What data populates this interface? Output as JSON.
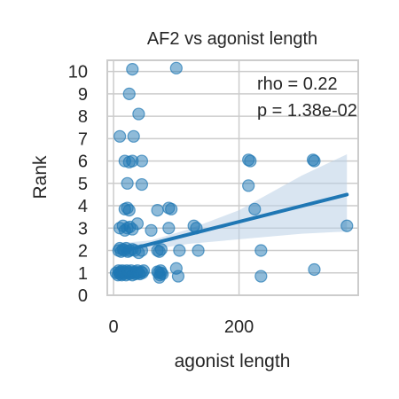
{
  "chart_data": {
    "type": "scatter",
    "title": "AF2 vs agonist length",
    "xlabel": "agonist length",
    "ylabel": "Rank",
    "xlim": [
      -10,
      390
    ],
    "ylim": [
      0,
      10.5
    ],
    "x_ticks": [
      0,
      200
    ],
    "y_ticks": [
      0,
      1,
      2,
      3,
      4,
      5,
      6,
      7,
      8,
      9,
      10
    ],
    "grid": true,
    "annotations": [
      "rho = 0.22",
      "p = 1.38e-02"
    ],
    "colors": {
      "points": "#1f77b4",
      "regression": "#1f77b4",
      "ci_band": "#b9cfe6",
      "grid": "#cccccc",
      "frame": "#cccccc"
    },
    "points": [
      [
        4,
        1.0
      ],
      [
        7,
        0.9
      ],
      [
        8,
        1.1
      ],
      [
        9,
        1.0
      ],
      [
        10,
        0.95
      ],
      [
        11,
        1.05
      ],
      [
        12,
        1.0
      ],
      [
        13,
        0.9
      ],
      [
        14,
        1.1
      ],
      [
        15,
        1.0
      ],
      [
        16,
        0.95
      ],
      [
        17,
        1.05
      ],
      [
        18,
        1.0
      ],
      [
        20,
        0.9
      ],
      [
        21,
        1.1
      ],
      [
        22,
        1.0
      ],
      [
        24,
        1.05
      ],
      [
        25,
        0.95
      ],
      [
        27,
        1.0
      ],
      [
        28,
        1.1
      ],
      [
        30,
        0.9
      ],
      [
        32,
        1.0
      ],
      [
        34,
        1.05
      ],
      [
        35,
        0.95
      ],
      [
        37,
        1.0
      ],
      [
        38,
        1.1
      ],
      [
        40,
        1.0
      ],
      [
        42,
        0.95
      ],
      [
        44,
        1.05
      ],
      [
        46,
        1.0
      ],
      [
        48,
        1.1
      ],
      [
        72,
        1.0
      ],
      [
        74,
        0.9
      ],
      [
        75,
        1.1
      ],
      [
        76,
        1.0
      ],
      [
        78,
        0.95
      ],
      [
        70,
        1.05
      ],
      [
        73,
        0.8
      ],
      [
        100,
        1.2
      ],
      [
        103,
        0.85
      ],
      [
        235,
        0.85
      ],
      [
        320,
        1.15
      ],
      [
        8,
        2.0
      ],
      [
        10,
        2.1
      ],
      [
        12,
        1.95
      ],
      [
        15,
        2.05
      ],
      [
        17,
        2.0
      ],
      [
        20,
        2.1
      ],
      [
        23,
        1.95
      ],
      [
        26,
        2.0
      ],
      [
        30,
        2.05
      ],
      [
        34,
        2.0
      ],
      [
        40,
        1.9
      ],
      [
        45,
        2.0
      ],
      [
        70,
        2.0
      ],
      [
        73,
        1.95
      ],
      [
        76,
        2.05
      ],
      [
        105,
        2.0
      ],
      [
        135,
        2.0
      ],
      [
        235,
        2.0
      ],
      [
        10,
        3.0
      ],
      [
        15,
        3.1
      ],
      [
        18,
        2.9
      ],
      [
        22,
        3.0
      ],
      [
        26,
        3.05
      ],
      [
        30,
        2.95
      ],
      [
        38,
        3.2
      ],
      [
        60,
        2.9
      ],
      [
        88,
        3.0
      ],
      [
        128,
        3.1
      ],
      [
        132,
        3.0
      ],
      [
        372,
        3.1
      ],
      [
        18,
        3.85
      ],
      [
        22,
        3.9
      ],
      [
        25,
        3.8
      ],
      [
        70,
        3.8
      ],
      [
        88,
        3.9
      ],
      [
        92,
        3.85
      ],
      [
        225,
        3.85
      ],
      [
        22,
        5.0
      ],
      [
        45,
        4.95
      ],
      [
        215,
        4.9
      ],
      [
        18,
        6.0
      ],
      [
        25,
        5.95
      ],
      [
        30,
        6.0
      ],
      [
        45,
        6.0
      ],
      [
        215,
        6.05
      ],
      [
        218,
        6.0
      ],
      [
        318,
        6.05
      ],
      [
        320,
        6.0
      ],
      [
        10,
        7.1
      ],
      [
        32,
        7.1
      ],
      [
        40,
        8.1
      ],
      [
        25,
        9.0
      ],
      [
        30,
        10.1
      ],
      [
        100,
        10.15
      ]
    ],
    "regression": {
      "x": [
        18,
        372
      ],
      "y": [
        2.0,
        4.5
      ]
    },
    "ci_band": {
      "x": [
        18,
        60,
        120,
        200,
        300,
        372
      ],
      "lower": [
        1.65,
        2.05,
        2.3,
        2.5,
        2.75,
        2.85
      ],
      "upper": [
        2.35,
        2.45,
        2.95,
        3.8,
        5.35,
        6.3
      ]
    }
  }
}
